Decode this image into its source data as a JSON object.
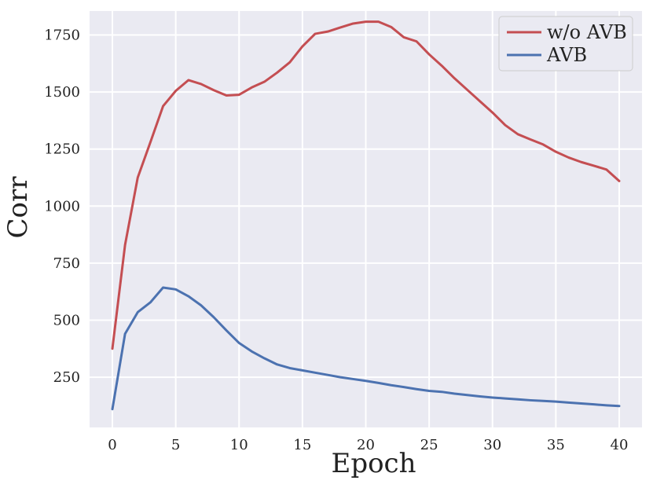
{
  "chart_data": {
    "type": "line",
    "title": "",
    "xlabel": "Epoch",
    "ylabel": "Corr",
    "xlim": [
      -1.8,
      41.8
    ],
    "ylim": [
      30,
      1855
    ],
    "xticks": [
      0,
      5,
      10,
      15,
      20,
      25,
      30,
      35,
      40
    ],
    "yticks": [
      250,
      500,
      750,
      1000,
      1250,
      1500,
      1750
    ],
    "grid": true,
    "legend_position": "top-right",
    "x": [
      0,
      1,
      2,
      3,
      4,
      5,
      6,
      7,
      8,
      9,
      10,
      11,
      12,
      13,
      14,
      15,
      16,
      17,
      18,
      19,
      20,
      21,
      22,
      23,
      24,
      25,
      26,
      27,
      28,
      29,
      30,
      31,
      32,
      33,
      34,
      35,
      36,
      37,
      38,
      39,
      40
    ],
    "series": [
      {
        "name": "w/o AVB",
        "color": "#c44e52",
        "values": [
          375,
          830,
          1125,
          1280,
          1438,
          1505,
          1552,
          1535,
          1508,
          1485,
          1488,
          1520,
          1545,
          1585,
          1630,
          1700,
          1755,
          1765,
          1783,
          1800,
          1808,
          1808,
          1785,
          1740,
          1722,
          1665,
          1615,
          1560,
          1510,
          1460,
          1410,
          1355,
          1315,
          1292,
          1270,
          1238,
          1213,
          1193,
          1177,
          1160,
          1110
        ]
      },
      {
        "name": "AVB",
        "color": "#4c72b0",
        "values": [
          110,
          440,
          535,
          578,
          643,
          635,
          605,
          565,
          513,
          455,
          400,
          363,
          333,
          306,
          290,
          280,
          270,
          260,
          250,
          242,
          234,
          225,
          215,
          207,
          198,
          190,
          186,
          178,
          172,
          166,
          161,
          157,
          153,
          149,
          146,
          143,
          139,
          135,
          131,
          127,
          124
        ]
      }
    ]
  }
}
